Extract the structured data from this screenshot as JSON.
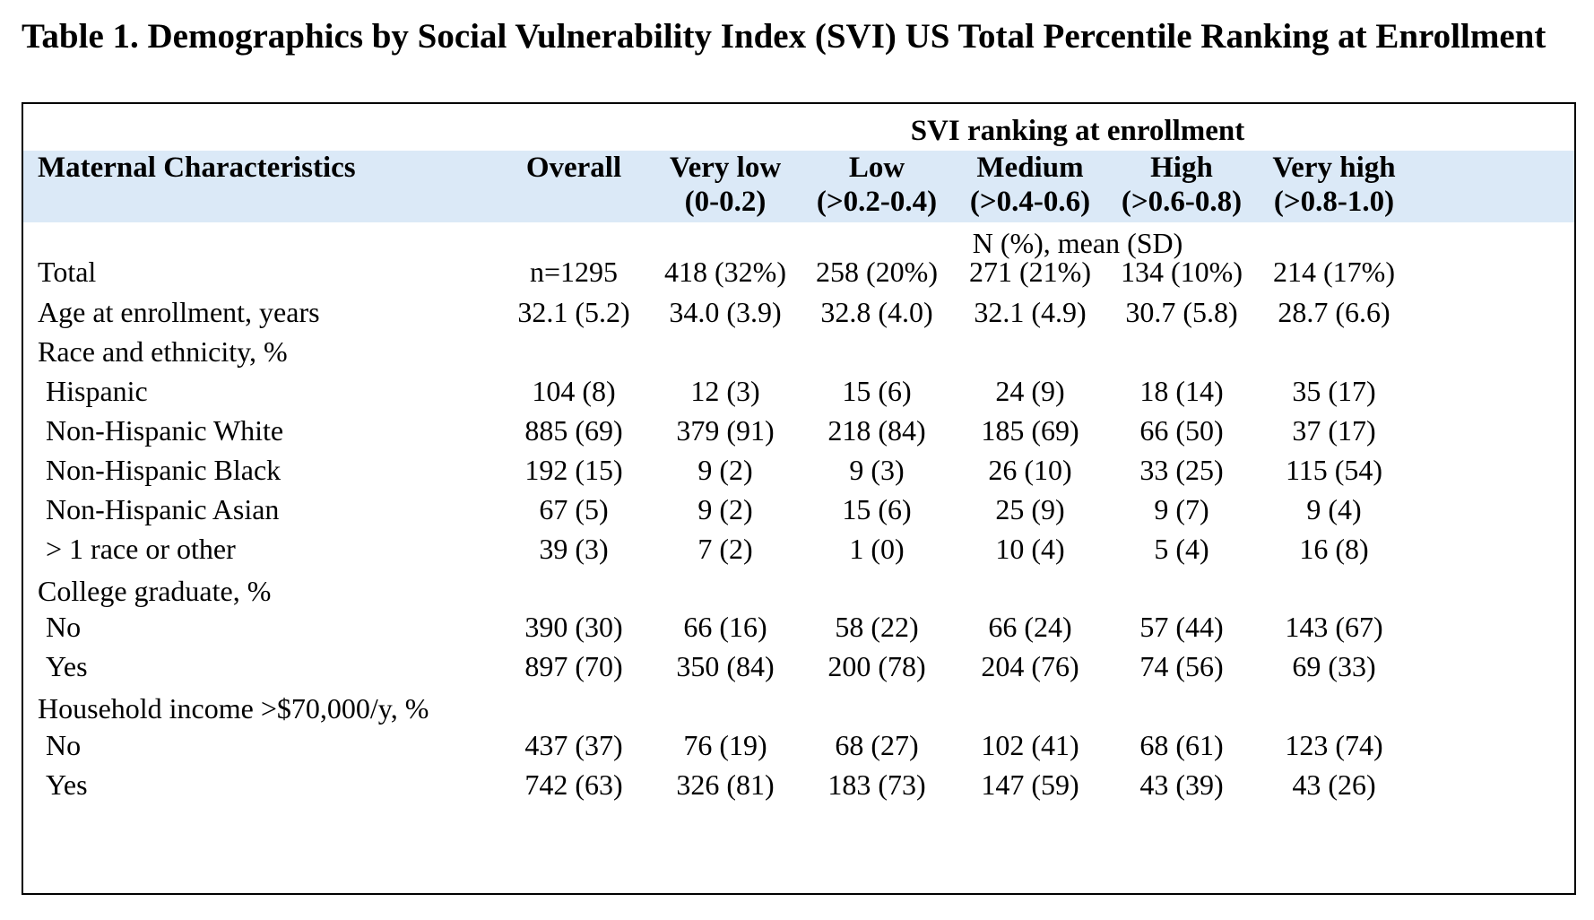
{
  "title": "Table 1. Demographics by Social Vulnerability Index (SVI) US Total Percentile Ranking at Enrollment",
  "table": {
    "group_header": "SVI ranking at enrollment",
    "columns": [
      {
        "line1": "Maternal Characteristics",
        "line2": ""
      },
      {
        "line1": "Overall",
        "line2": ""
      },
      {
        "line1": "Very low",
        "line2": "(0-0.2)"
      },
      {
        "line1": "Low",
        "line2": "(>0.2-0.4)"
      },
      {
        "line1": "Medium",
        "line2": "(>0.4-0.6)"
      },
      {
        "line1": "High",
        "line2": "(>0.6-0.8)"
      },
      {
        "line1": "Very high",
        "line2": "(>0.8-1.0)"
      }
    ],
    "units": "N (%), mean (SD)",
    "rows": [
      {
        "label": "Total",
        "indent": false,
        "values": [
          "n=1295",
          "418 (32%)",
          "258 (20%)",
          "271 (21%)",
          "134 (10%)",
          "214 (17%)"
        ]
      },
      {
        "label": "Age at enrollment, years",
        "indent": false,
        "values": [
          "32.1 (5.2)",
          "34.0 (3.9)",
          "32.8 (4.0)",
          "32.1 (4.9)",
          "30.7 (5.8)",
          "28.7 (6.6)"
        ]
      },
      {
        "label": "Race and ethnicity, %",
        "indent": false,
        "values": [
          "",
          "",
          "",
          "",
          "",
          ""
        ]
      },
      {
        "label": "Hispanic",
        "indent": true,
        "values": [
          "104 (8)",
          "12 (3)",
          "15 (6)",
          "24 (9)",
          "18 (14)",
          "35 (17)"
        ]
      },
      {
        "label": "Non-Hispanic White",
        "indent": true,
        "values": [
          "885 (69)",
          "379 (91)",
          "218 (84)",
          "185 (69)",
          "66 (50)",
          "37 (17)"
        ]
      },
      {
        "label": "Non-Hispanic Black",
        "indent": true,
        "values": [
          "192 (15)",
          "9 (2)",
          "9 (3)",
          "26 (10)",
          "33 (25)",
          "115 (54)"
        ]
      },
      {
        "label": "Non-Hispanic Asian",
        "indent": true,
        "values": [
          "67 (5)",
          "9 (2)",
          "15 (6)",
          "25 (9)",
          "9 (7)",
          "9 (4)"
        ]
      },
      {
        "label": "> 1 race or other",
        "indent": true,
        "values": [
          "39 (3)",
          "7 (2)",
          "1 (0)",
          "10 (4)",
          "5 (4)",
          "16 (8)"
        ]
      },
      {
        "label": "College graduate, %",
        "indent": false,
        "values": [
          "",
          "",
          "",
          "",
          "",
          ""
        ]
      },
      {
        "label": "No",
        "indent": true,
        "values": [
          "390 (30)",
          "66 (16)",
          "58 (22)",
          "66 (24)",
          "57 (44)",
          "143 (67)"
        ]
      },
      {
        "label": "Yes",
        "indent": true,
        "values": [
          "897 (70)",
          "350 (84)",
          "200 (78)",
          "204 (76)",
          "74 (56)",
          "69 (33)"
        ]
      },
      {
        "label": "Household income >$70,000/y, %",
        "indent": false,
        "values": [
          "",
          "",
          "",
          "",
          "",
          ""
        ]
      },
      {
        "label": "No",
        "indent": true,
        "values": [
          "437 (37)",
          "76 (19)",
          "68 (27)",
          "102 (41)",
          "68 (61)",
          "123 (74)"
        ]
      },
      {
        "label": "Yes",
        "indent": true,
        "values": [
          "742 (63)",
          "326 (81)",
          "183 (73)",
          "147 (59)",
          "43 (39)",
          "43 (26)"
        ]
      }
    ]
  },
  "colors": {
    "header_background": "#dbe9f7",
    "border": "#000000",
    "text": "#000000"
  }
}
